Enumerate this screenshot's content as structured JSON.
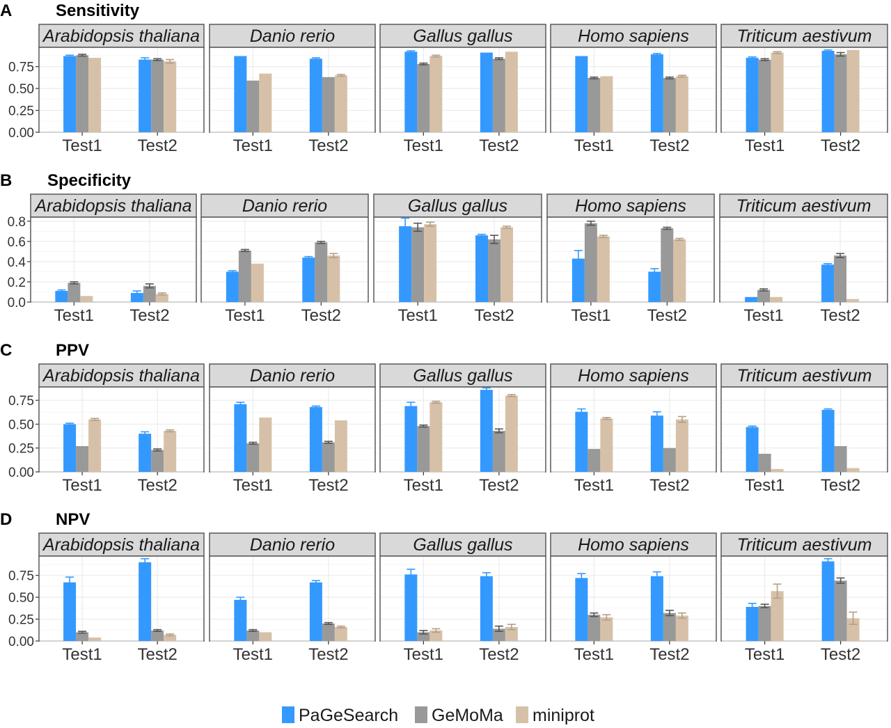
{
  "chart_data": {
    "type": "bar",
    "groups": [
      "Test1",
      "Test2"
    ],
    "facets": [
      "Arabidopsis thaliana",
      "Danio rerio",
      "Gallus gallus",
      "Homo sapiens",
      "Triticum aestivum"
    ],
    "legend": {
      "placement": "bottom",
      "entries": [
        {
          "name": "PaGeSearch",
          "color": "#3399ff"
        },
        {
          "name": "GeMoMa",
          "color": "#999999"
        },
        {
          "name": "miniprot",
          "color": "#d6c1a8"
        }
      ]
    },
    "error_color": {
      "PaGeSearch": "#3399ff",
      "GeMoMa": "#555555",
      "miniprot": "#b49d86"
    },
    "grid": true,
    "panels": [
      {
        "letter": "A",
        "title": "Sensitivity",
        "ylim": [
          0,
          0.97
        ],
        "yticks": [
          0.0,
          0.25,
          0.5,
          0.75
        ],
        "ytick_labels": [
          "0.00",
          "0.25",
          "0.50",
          "0.75"
        ],
        "facets": [
          {
            "name": "Arabidopsis thaliana",
            "values": [
              [
                0.87,
                0.88,
                0.85
              ],
              [
                0.83,
                0.83,
                0.81
              ]
            ],
            "errors": [
              [
                0.01,
                0.01,
                0.0
              ],
              [
                0.02,
                0.01,
                0.02
              ]
            ]
          },
          {
            "name": "Danio rerio",
            "values": [
              [
                0.87,
                0.59,
                0.67
              ],
              [
                0.84,
                0.63,
                0.65
              ]
            ],
            "errors": [
              [
                0.0,
                0.0,
                0.0
              ],
              [
                0.01,
                0.0,
                0.01
              ]
            ]
          },
          {
            "name": "Gallus gallus",
            "values": [
              [
                0.92,
                0.78,
                0.87
              ],
              [
                0.91,
                0.84,
                0.92
              ]
            ],
            "errors": [
              [
                0.01,
                0.01,
                0.01
              ],
              [
                0.0,
                0.01,
                0.0
              ]
            ]
          },
          {
            "name": "Homo sapiens",
            "values": [
              [
                0.87,
                0.62,
                0.64
              ],
              [
                0.89,
                0.62,
                0.64
              ]
            ],
            "errors": [
              [
                0.0,
                0.01,
                0.0
              ],
              [
                0.01,
                0.01,
                0.01
              ]
            ]
          },
          {
            "name": "Triticum aestivum",
            "values": [
              [
                0.85,
                0.83,
                0.91
              ],
              [
                0.93,
                0.89,
                0.94
              ]
            ],
            "errors": [
              [
                0.01,
                0.01,
                0.01
              ],
              [
                0.01,
                0.02,
                0.0
              ]
            ]
          }
        ]
      },
      {
        "letter": "B",
        "title": "Specificity",
        "ylim": [
          0,
          0.84
        ],
        "yticks": [
          0.0,
          0.2,
          0.4,
          0.6,
          0.8
        ],
        "ytick_labels": [
          "0.0",
          "0.2",
          "0.4",
          "0.6",
          "0.8"
        ],
        "facets": [
          {
            "name": "Arabidopsis thaliana",
            "values": [
              [
                0.11,
                0.19,
                0.06
              ],
              [
                0.09,
                0.16,
                0.08
              ]
            ],
            "errors": [
              [
                0.01,
                0.01,
                0.0
              ],
              [
                0.02,
                0.02,
                0.01
              ]
            ]
          },
          {
            "name": "Danio rerio",
            "values": [
              [
                0.3,
                0.51,
                0.38
              ],
              [
                0.44,
                0.59,
                0.46
              ]
            ],
            "errors": [
              [
                0.01,
                0.01,
                0.0
              ],
              [
                0.01,
                0.01,
                0.02
              ]
            ]
          },
          {
            "name": "Gallus gallus",
            "values": [
              [
                0.75,
                0.74,
                0.77
              ],
              [
                0.66,
                0.62,
                0.74
              ]
            ],
            "errors": [
              [
                0.08,
                0.04,
                0.02
              ],
              [
                0.01,
                0.04,
                0.01
              ]
            ]
          },
          {
            "name": "Homo sapiens",
            "values": [
              [
                0.43,
                0.78,
                0.65
              ],
              [
                0.3,
                0.73,
                0.62
              ]
            ],
            "errors": [
              [
                0.08,
                0.02,
                0.01
              ],
              [
                0.03,
                0.01,
                0.01
              ]
            ]
          },
          {
            "name": "Triticum aestivum",
            "values": [
              [
                0.05,
                0.12,
                0.05
              ],
              [
                0.37,
                0.46,
                0.03
              ]
            ],
            "errors": [
              [
                0.0,
                0.01,
                0.0
              ],
              [
                0.01,
                0.02,
                0.0
              ]
            ]
          }
        ]
      },
      {
        "letter": "C",
        "title": "PPV",
        "ylim": [
          0,
          0.89
        ],
        "yticks": [
          0.0,
          0.25,
          0.5,
          0.75
        ],
        "ytick_labels": [
          "0.00",
          "0.25",
          "0.50",
          "0.75"
        ],
        "facets": [
          {
            "name": "Arabidopsis thaliana",
            "values": [
              [
                0.5,
                0.27,
                0.55
              ],
              [
                0.4,
                0.23,
                0.43
              ]
            ],
            "errors": [
              [
                0.01,
                0.0,
                0.01
              ],
              [
                0.02,
                0.01,
                0.01
              ]
            ]
          },
          {
            "name": "Danio rerio",
            "values": [
              [
                0.71,
                0.3,
                0.57
              ],
              [
                0.68,
                0.31,
                0.54
              ]
            ],
            "errors": [
              [
                0.02,
                0.01,
                0.0
              ],
              [
                0.01,
                0.01,
                0.0
              ]
            ]
          },
          {
            "name": "Gallus gallus",
            "values": [
              [
                0.69,
                0.48,
                0.73
              ],
              [
                0.86,
                0.43,
                0.8
              ]
            ],
            "errors": [
              [
                0.04,
                0.01,
                0.01
              ],
              [
                0.02,
                0.02,
                0.01
              ]
            ]
          },
          {
            "name": "Homo sapiens",
            "values": [
              [
                0.63,
                0.24,
                0.56
              ],
              [
                0.59,
                0.25,
                0.55
              ]
            ],
            "errors": [
              [
                0.03,
                0.0,
                0.01
              ],
              [
                0.04,
                0.0,
                0.03
              ]
            ]
          },
          {
            "name": "Triticum aestivum",
            "values": [
              [
                0.47,
                0.19,
                0.03
              ],
              [
                0.65,
                0.27,
                0.04
              ]
            ],
            "errors": [
              [
                0.01,
                0.0,
                0.0
              ],
              [
                0.01,
                0.0,
                0.0
              ]
            ]
          }
        ]
      },
      {
        "letter": "D",
        "title": "NPV",
        "ylim": [
          0,
          0.97
        ],
        "yticks": [
          0.0,
          0.25,
          0.5,
          0.75
        ],
        "ytick_labels": [
          "0.00",
          "0.25",
          "0.50",
          "0.75"
        ],
        "facets": [
          {
            "name": "Arabidopsis thaliana",
            "values": [
              [
                0.67,
                0.1,
                0.04
              ],
              [
                0.9,
                0.12,
                0.07
              ]
            ],
            "errors": [
              [
                0.06,
                0.01,
                0.0
              ],
              [
                0.04,
                0.01,
                0.01
              ]
            ]
          },
          {
            "name": "Danio rerio",
            "values": [
              [
                0.47,
                0.12,
                0.1
              ],
              [
                0.67,
                0.2,
                0.16
              ]
            ],
            "errors": [
              [
                0.03,
                0.01,
                0.0
              ],
              [
                0.02,
                0.01,
                0.01
              ]
            ]
          },
          {
            "name": "Gallus gallus",
            "values": [
              [
                0.76,
                0.1,
                0.12
              ],
              [
                0.74,
                0.14,
                0.16
              ]
            ],
            "errors": [
              [
                0.06,
                0.02,
                0.02
              ],
              [
                0.04,
                0.03,
                0.03
              ]
            ]
          },
          {
            "name": "Homo sapiens",
            "values": [
              [
                0.72,
                0.3,
                0.27
              ],
              [
                0.74,
                0.32,
                0.29
              ]
            ],
            "errors": [
              [
                0.05,
                0.02,
                0.03
              ],
              [
                0.05,
                0.03,
                0.03
              ]
            ]
          },
          {
            "name": "Triticum aestivum",
            "values": [
              [
                0.39,
                0.4,
                0.57
              ],
              [
                0.91,
                0.69,
                0.26
              ]
            ],
            "errors": [
              [
                0.04,
                0.02,
                0.08
              ],
              [
                0.03,
                0.03,
                0.07
              ]
            ]
          }
        ]
      }
    ]
  }
}
